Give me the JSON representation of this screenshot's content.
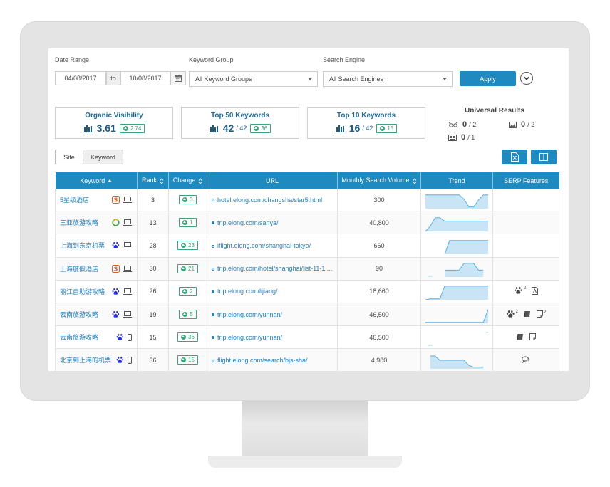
{
  "filters": {
    "date_range_label": "Date Range",
    "date_from": "04/08/2017",
    "date_separator": "to",
    "date_to": "10/08/2017",
    "keyword_group_label": "Keyword Group",
    "keyword_group_value": "All Keyword Groups",
    "search_engine_label": "Search Engine",
    "search_engine_value": "All Search Engines",
    "apply_label": "Apply"
  },
  "cards": [
    {
      "title": "Organic Visibility",
      "value": "3.61",
      "denominator": "",
      "change": "2.74"
    },
    {
      "title": "Top 50 Keywords",
      "value": "42",
      "denominator": "/ 42",
      "change": "36"
    },
    {
      "title": "Top 10 Keywords",
      "value": "16",
      "denominator": "/ 42",
      "change": "15"
    }
  ],
  "universal_results": {
    "title": "Universal Results",
    "items": [
      {
        "icon": "glasses-icon",
        "value": "0",
        "den": "/ 2"
      },
      {
        "icon": "image-icon",
        "value": "0",
        "den": "/ 2"
      },
      {
        "icon": "news-icon",
        "value": "0",
        "den": "/ 1"
      }
    ]
  },
  "view_toggle": {
    "site": "Site",
    "keyword": "Keyword"
  },
  "table": {
    "headers": {
      "keyword": "Keyword",
      "rank": "Rank",
      "change": "Change",
      "url": "URL",
      "volume": "Monthly Search Volume",
      "trend": "Trend",
      "serp": "SERP Features"
    },
    "rows": [
      {
        "keyword": "5星级酒店",
        "engine": "sogou",
        "device": "desktop",
        "rank": "3",
        "change": "3",
        "url": "hotel.elong.com/changsha/star5.html",
        "url_dot": "hollow",
        "volume": "300",
        "trend": [
          0.8,
          0.8,
          0.8,
          0.8,
          0.8,
          0.8,
          0.8,
          0.8,
          0.55,
          0.1,
          0.1,
          0.5,
          0.8,
          0.8
        ],
        "serp": []
      },
      {
        "keyword": "三亚旅游攻略",
        "engine": "360",
        "device": "desktop",
        "rank": "13",
        "change": "1",
        "url": "trip.elong.com/sanya/",
        "url_dot": "filled",
        "volume": "40,800",
        "trend": [
          0.0,
          0.3,
          0.8,
          0.8,
          0.6,
          0.6,
          0.6,
          0.6,
          0.6,
          0.6,
          0.6,
          0.6,
          0.6,
          0.6
        ],
        "serp": []
      },
      {
        "keyword": "上海到东京机票",
        "engine": "baidu",
        "device": "desktop",
        "rank": "28",
        "change": "23",
        "url": "iflight.elong.com/shanghai-tokyo/",
        "url_dot": "hollow",
        "volume": "660",
        "trend": [
          null,
          null,
          null,
          null,
          0.0,
          0.8,
          0.8,
          0.8,
          0.8,
          0.8,
          0.8,
          0.8,
          0.8,
          0.8
        ],
        "serp": []
      },
      {
        "keyword": "上海度假酒店",
        "engine": "sogou",
        "device": "desktop",
        "rank": "30",
        "change": "21",
        "url": "trip.elong.com/hotel/shanghai/list-11-1....",
        "url_dot": "hollow",
        "volume": "90",
        "trend": [
          null,
          0.05,
          null,
          null,
          0.4,
          0.4,
          0.4,
          0.4,
          0.8,
          0.8,
          0.8,
          0.4,
          0.4,
          null
        ],
        "serp": []
      },
      {
        "keyword": "丽江自助游攻略",
        "engine": "baidu",
        "device": "desktop",
        "rank": "26",
        "change": "2",
        "url": "trip.elong.com/lijiang/",
        "url_dot": "filled",
        "volume": "18,660",
        "trend": [
          0.0,
          0.05,
          0.05,
          0.05,
          0.8,
          0.8,
          0.8,
          0.8,
          0.8,
          0.8,
          0.8,
          0.8,
          0.8,
          0.8
        ],
        "serp": [
          {
            "icon": "paw-icon",
            "sup": "2"
          },
          {
            "icon": "pdf-icon",
            "sup": ""
          }
        ]
      },
      {
        "keyword": "云南旅游攻略",
        "engine": "baidu",
        "device": "desktop",
        "rank": "19",
        "change": "5",
        "url": "trip.elong.com/yunnan/",
        "url_dot": "filled",
        "volume": "46,500",
        "trend": [
          0.05,
          0.05,
          0.05,
          0.05,
          0.05,
          0.05,
          0.05,
          0.05,
          0.05,
          0.05,
          0.05,
          0.05,
          0.05,
          0.8
        ],
        "serp": [
          {
            "icon": "paw-icon",
            "sup": "2"
          },
          {
            "icon": "book-icon",
            "sup": ""
          },
          {
            "icon": "page-icon",
            "sup": "2"
          }
        ]
      },
      {
        "keyword": "云南旅游攻略",
        "engine": "baidu",
        "device": "mobile",
        "rank": "15",
        "change": "36",
        "url": "trip.elong.com/yunnan/",
        "url_dot": "filled",
        "volume": "46,500",
        "trend": [
          null,
          0.05,
          null,
          null,
          null,
          null,
          null,
          null,
          null,
          null,
          null,
          null,
          null,
          0.8
        ],
        "serp": [
          {
            "icon": "book-icon",
            "sup": ""
          },
          {
            "icon": "page-icon",
            "sup": ""
          }
        ]
      },
      {
        "keyword": "北京到上海的机票",
        "engine": "baidu",
        "device": "mobile",
        "rank": "36",
        "change": "15",
        "url": "flight.elong.com/search/bjs-sha/",
        "url_dot": "hollow",
        "volume": "4,980",
        "trend": [
          null,
          0.75,
          0.75,
          0.5,
          0.5,
          0.5,
          0.5,
          0.5,
          0.5,
          0.2,
          0.1,
          0.1,
          0.1,
          null
        ],
        "serp": [
          {
            "icon": "chat-icon",
            "sup": ""
          }
        ]
      }
    ]
  },
  "colors": {
    "accent": "#1f8ac0",
    "positive": "#3aa57a",
    "link": "#1f7fbf"
  }
}
